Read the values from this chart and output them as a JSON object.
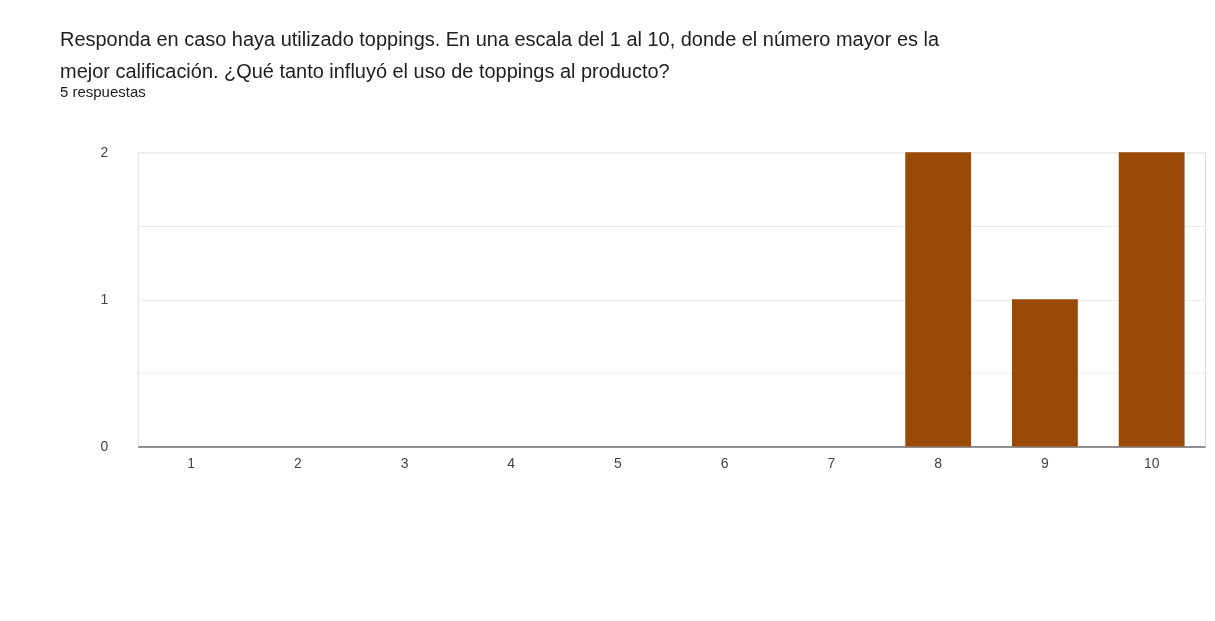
{
  "chart_data": {
    "type": "bar",
    "title": "Responda en caso haya utilizado toppings. En una escala del 1 al 10, donde el número mayor es la mejor calificación. ¿Qué tanto influyó el uso de toppings al producto?",
    "subtitle": "5 respuestas",
    "categories": [
      "1",
      "2",
      "3",
      "4",
      "5",
      "6",
      "7",
      "8",
      "9",
      "10"
    ],
    "values": [
      0,
      0,
      0,
      0,
      0,
      0,
      0,
      2,
      1,
      2
    ],
    "color": "#994a06",
    "ylim": [
      0,
      2
    ],
    "yticks": [
      0,
      {
        "value": 0.5,
        "label": null
      },
      1,
      {
        "value": 1.5,
        "label": null
      },
      2
    ],
    "grid": "y"
  }
}
